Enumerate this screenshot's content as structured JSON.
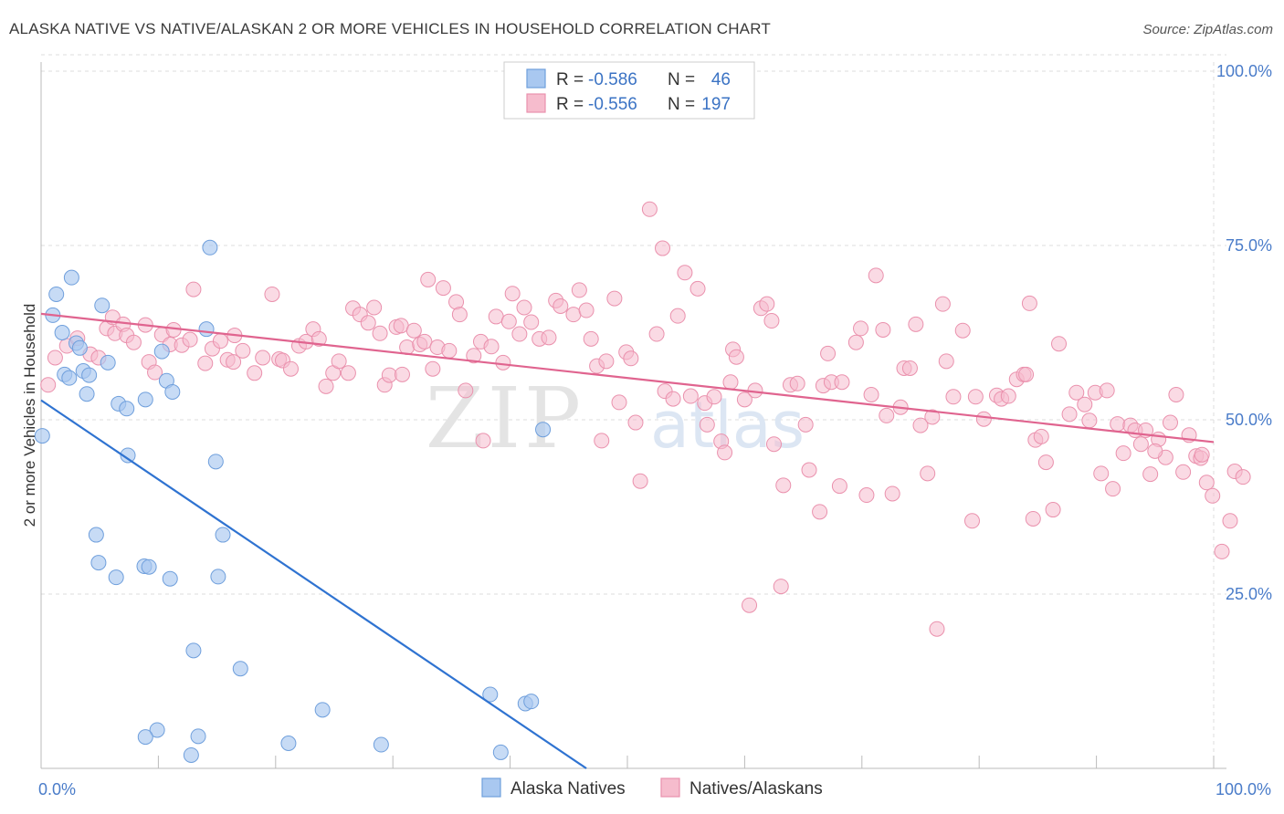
{
  "title": "ALASKA NATIVE VS NATIVE/ALASKAN 2 OR MORE VEHICLES IN HOUSEHOLD CORRELATION CHART",
  "source": "Source: ZipAtlas.com",
  "watermark": {
    "part1": "ZIP",
    "part2": "atlas"
  },
  "colors": {
    "blue_fill": "#a9c8f0",
    "blue_stroke": "#6f9fdc",
    "blue_line": "#2f73d1",
    "pink_fill": "#f6bccd",
    "pink_stroke": "#ea91ad",
    "pink_line": "#e0648f",
    "axis_text": "#4a7cc9",
    "grid": "#dddddd"
  },
  "chart_data": {
    "type": "scatter",
    "xlabel": "",
    "ylabel": "2 or more Vehicles in Household",
    "xlim": [
      0,
      100
    ],
    "ylim": [
      0,
      100
    ],
    "x_tick_labels": [
      "0.0%",
      "100.0%"
    ],
    "y_ticks": [
      25,
      50,
      75,
      100
    ],
    "y_tick_labels": [
      "25.0%",
      "50.0%",
      "75.0%",
      "100.0%"
    ],
    "grid": true,
    "legend_position": "bottom",
    "stats": [
      {
        "r_label": "R =",
        "r_value": "-0.586",
        "n_label": "N =",
        "n_value": "46"
      },
      {
        "r_label": "R =",
        "r_value": "-0.556",
        "n_label": "N =",
        "n_value": "197"
      }
    ],
    "series": [
      {
        "name": "Alaska Natives",
        "trend": [
          [
            0,
            52.8
          ],
          [
            46.5,
            0
          ]
        ],
        "points": [
          [
            0.1,
            47.7
          ],
          [
            1.0,
            65.0
          ],
          [
            1.3,
            68.0
          ],
          [
            1.8,
            62.5
          ],
          [
            2.0,
            56.5
          ],
          [
            2.4,
            56.0
          ],
          [
            2.6,
            70.4
          ],
          [
            3.0,
            61.0
          ],
          [
            3.3,
            60.3
          ],
          [
            3.6,
            57.0
          ],
          [
            3.9,
            53.7
          ],
          [
            4.1,
            56.4
          ],
          [
            5.2,
            66.4
          ],
          [
            5.7,
            58.2
          ],
          [
            6.6,
            52.3
          ],
          [
            7.3,
            51.6
          ],
          [
            7.4,
            44.9
          ],
          [
            8.9,
            52.9
          ],
          [
            10.3,
            59.8
          ],
          [
            10.7,
            55.6
          ],
          [
            11.2,
            54.0
          ],
          [
            14.4,
            74.7
          ],
          [
            14.1,
            63.0
          ],
          [
            14.9,
            44.0
          ],
          [
            15.5,
            33.5
          ],
          [
            4.7,
            33.5
          ],
          [
            4.9,
            29.5
          ],
          [
            6.4,
            27.4
          ],
          [
            8.8,
            29.0
          ],
          [
            9.2,
            28.9
          ],
          [
            11.0,
            27.2
          ],
          [
            15.1,
            27.5
          ],
          [
            13.0,
            16.9
          ],
          [
            17.0,
            14.3
          ],
          [
            24.0,
            8.4
          ],
          [
            38.3,
            10.6
          ],
          [
            41.3,
            9.3
          ],
          [
            41.8,
            9.6
          ],
          [
            42.8,
            48.6
          ],
          [
            9.9,
            5.5
          ],
          [
            8.9,
            4.5
          ],
          [
            13.4,
            4.6
          ],
          [
            12.8,
            1.9
          ],
          [
            21.1,
            3.6
          ],
          [
            29.0,
            3.4
          ],
          [
            39.2,
            2.3
          ]
        ]
      },
      {
        "name": "Natives/Alaskans",
        "trend": [
          [
            0,
            65.2
          ],
          [
            100,
            46.8
          ]
        ],
        "points": [
          [
            0.6,
            55.0
          ],
          [
            1.2,
            58.9
          ],
          [
            2.2,
            60.6
          ],
          [
            3.1,
            61.7
          ],
          [
            4.2,
            59.4
          ],
          [
            4.9,
            58.9
          ],
          [
            5.6,
            63.1
          ],
          [
            6.1,
            64.7
          ],
          [
            6.3,
            62.4
          ],
          [
            7.0,
            63.7
          ],
          [
            7.3,
            62.1
          ],
          [
            7.9,
            61.1
          ],
          [
            8.9,
            63.6
          ],
          [
            9.2,
            58.3
          ],
          [
            9.7,
            56.8
          ],
          [
            10.3,
            62.2
          ],
          [
            11.0,
            60.8
          ],
          [
            11.3,
            62.9
          ],
          [
            12.0,
            60.7
          ],
          [
            12.7,
            61.5
          ],
          [
            13.0,
            68.7
          ],
          [
            14.0,
            58.1
          ],
          [
            14.6,
            60.2
          ],
          [
            15.3,
            61.3
          ],
          [
            15.9,
            58.6
          ],
          [
            16.4,
            58.3
          ],
          [
            16.5,
            62.1
          ],
          [
            17.2,
            59.9
          ],
          [
            18.2,
            56.7
          ],
          [
            18.9,
            58.9
          ],
          [
            19.7,
            68.0
          ],
          [
            20.3,
            58.7
          ],
          [
            20.6,
            58.5
          ],
          [
            21.3,
            57.3
          ],
          [
            22.0,
            60.6
          ],
          [
            22.6,
            61.2
          ],
          [
            23.2,
            63.0
          ],
          [
            23.7,
            61.6
          ],
          [
            24.3,
            54.8
          ],
          [
            24.9,
            56.7
          ],
          [
            25.4,
            58.4
          ],
          [
            26.2,
            56.7
          ],
          [
            26.6,
            66.0
          ],
          [
            27.2,
            65.1
          ],
          [
            27.9,
            63.9
          ],
          [
            28.4,
            66.1
          ],
          [
            28.9,
            62.4
          ],
          [
            29.3,
            55.0
          ],
          [
            29.7,
            56.4
          ],
          [
            30.3,
            63.3
          ],
          [
            30.7,
            63.5
          ],
          [
            31.2,
            60.4
          ],
          [
            31.8,
            62.8
          ],
          [
            32.3,
            60.8
          ],
          [
            32.7,
            61.2
          ],
          [
            33.0,
            70.1
          ],
          [
            33.4,
            57.3
          ],
          [
            33.8,
            60.4
          ],
          [
            34.3,
            68.9
          ],
          [
            34.8,
            59.9
          ],
          [
            35.4,
            66.9
          ],
          [
            35.7,
            65.1
          ],
          [
            36.2,
            54.2
          ],
          [
            36.9,
            59.2
          ],
          [
            37.5,
            61.2
          ],
          [
            37.7,
            47.0
          ],
          [
            38.4,
            60.5
          ],
          [
            38.8,
            64.8
          ],
          [
            39.4,
            58.2
          ],
          [
            39.9,
            64.1
          ],
          [
            40.2,
            68.1
          ],
          [
            40.8,
            62.3
          ],
          [
            41.2,
            66.1
          ],
          [
            41.8,
            64.0
          ],
          [
            42.5,
            61.6
          ],
          [
            43.3,
            61.8
          ],
          [
            43.9,
            67.1
          ],
          [
            44.3,
            66.3
          ],
          [
            45.4,
            65.1
          ],
          [
            45.9,
            68.6
          ],
          [
            46.5,
            65.7
          ],
          [
            46.9,
            61.6
          ],
          [
            47.4,
            57.7
          ],
          [
            47.8,
            47.0
          ],
          [
            48.2,
            58.4
          ],
          [
            48.9,
            67.4
          ],
          [
            49.3,
            52.5
          ],
          [
            49.9,
            59.7
          ],
          [
            50.3,
            58.8
          ],
          [
            50.7,
            49.6
          ],
          [
            51.1,
            41.2
          ],
          [
            51.9,
            80.2
          ],
          [
            52.5,
            62.3
          ],
          [
            53.0,
            74.6
          ],
          [
            53.2,
            54.1
          ],
          [
            53.9,
            53.0
          ],
          [
            54.3,
            64.9
          ],
          [
            54.9,
            71.1
          ],
          [
            55.4,
            53.4
          ],
          [
            56.0,
            68.8
          ],
          [
            56.6,
            52.4
          ],
          [
            56.8,
            49.3
          ],
          [
            57.4,
            53.3
          ],
          [
            58.0,
            46.9
          ],
          [
            58.3,
            45.3
          ],
          [
            58.8,
            55.4
          ],
          [
            59.0,
            60.1
          ],
          [
            59.3,
            59.0
          ],
          [
            60.0,
            52.9
          ],
          [
            60.9,
            54.2
          ],
          [
            61.4,
            66.0
          ],
          [
            61.9,
            66.6
          ],
          [
            62.3,
            64.2
          ],
          [
            62.5,
            46.5
          ],
          [
            63.1,
            26.1
          ],
          [
            63.3,
            40.6
          ],
          [
            63.9,
            55.0
          ],
          [
            64.5,
            55.2
          ],
          [
            65.2,
            49.3
          ],
          [
            65.5,
            42.8
          ],
          [
            66.4,
            36.8
          ],
          [
            66.7,
            54.9
          ],
          [
            67.1,
            59.5
          ],
          [
            67.4,
            55.4
          ],
          [
            68.1,
            40.5
          ],
          [
            68.3,
            55.4
          ],
          [
            69.5,
            61.1
          ],
          [
            69.9,
            63.1
          ],
          [
            70.4,
            39.2
          ],
          [
            70.8,
            53.6
          ],
          [
            71.2,
            70.7
          ],
          [
            71.8,
            62.9
          ],
          [
            72.1,
            50.6
          ],
          [
            72.6,
            39.4
          ],
          [
            73.3,
            51.8
          ],
          [
            73.6,
            57.4
          ],
          [
            74.1,
            57.4
          ],
          [
            74.6,
            63.7
          ],
          [
            75.0,
            49.2
          ],
          [
            75.6,
            42.3
          ],
          [
            76.0,
            50.4
          ],
          [
            76.4,
            20.0
          ],
          [
            76.9,
            66.6
          ],
          [
            77.2,
            58.4
          ],
          [
            77.8,
            53.3
          ],
          [
            78.6,
            62.8
          ],
          [
            79.4,
            35.5
          ],
          [
            79.7,
            53.3
          ],
          [
            80.4,
            50.1
          ],
          [
            81.5,
            53.5
          ],
          [
            81.9,
            53.0
          ],
          [
            82.5,
            53.4
          ],
          [
            83.2,
            55.8
          ],
          [
            83.8,
            56.5
          ],
          [
            84.3,
            66.7
          ],
          [
            84.6,
            35.8
          ],
          [
            84.8,
            47.1
          ],
          [
            85.3,
            47.6
          ],
          [
            85.7,
            43.9
          ],
          [
            86.3,
            37.1
          ],
          [
            86.8,
            60.9
          ],
          [
            87.7,
            50.8
          ],
          [
            88.3,
            53.9
          ],
          [
            89.0,
            52.2
          ],
          [
            89.4,
            49.9
          ],
          [
            89.9,
            53.9
          ],
          [
            90.4,
            42.3
          ],
          [
            90.9,
            54.2
          ],
          [
            91.4,
            40.1
          ],
          [
            91.8,
            49.4
          ],
          [
            92.3,
            45.2
          ],
          [
            92.9,
            49.2
          ],
          [
            93.3,
            48.5
          ],
          [
            93.8,
            46.5
          ],
          [
            94.2,
            48.5
          ],
          [
            94.6,
            42.2
          ],
          [
            95.3,
            47.2
          ],
          [
            95.9,
            44.6
          ],
          [
            96.3,
            49.6
          ],
          [
            96.8,
            53.6
          ],
          [
            97.4,
            42.5
          ],
          [
            97.9,
            47.8
          ],
          [
            98.5,
            44.8
          ],
          [
            98.9,
            44.5
          ],
          [
            99.4,
            41.0
          ],
          [
            99.9,
            39.1
          ],
          [
            100.7,
            31.1
          ],
          [
            101.4,
            35.5
          ],
          [
            101.8,
            42.6
          ],
          [
            102.5,
            41.8
          ],
          [
            99.0,
            45.0
          ],
          [
            60.4,
            23.4
          ],
          [
            84.0,
            56.5
          ],
          [
            95.0,
            45.5
          ],
          [
            30.8,
            56.5
          ]
        ]
      }
    ]
  }
}
